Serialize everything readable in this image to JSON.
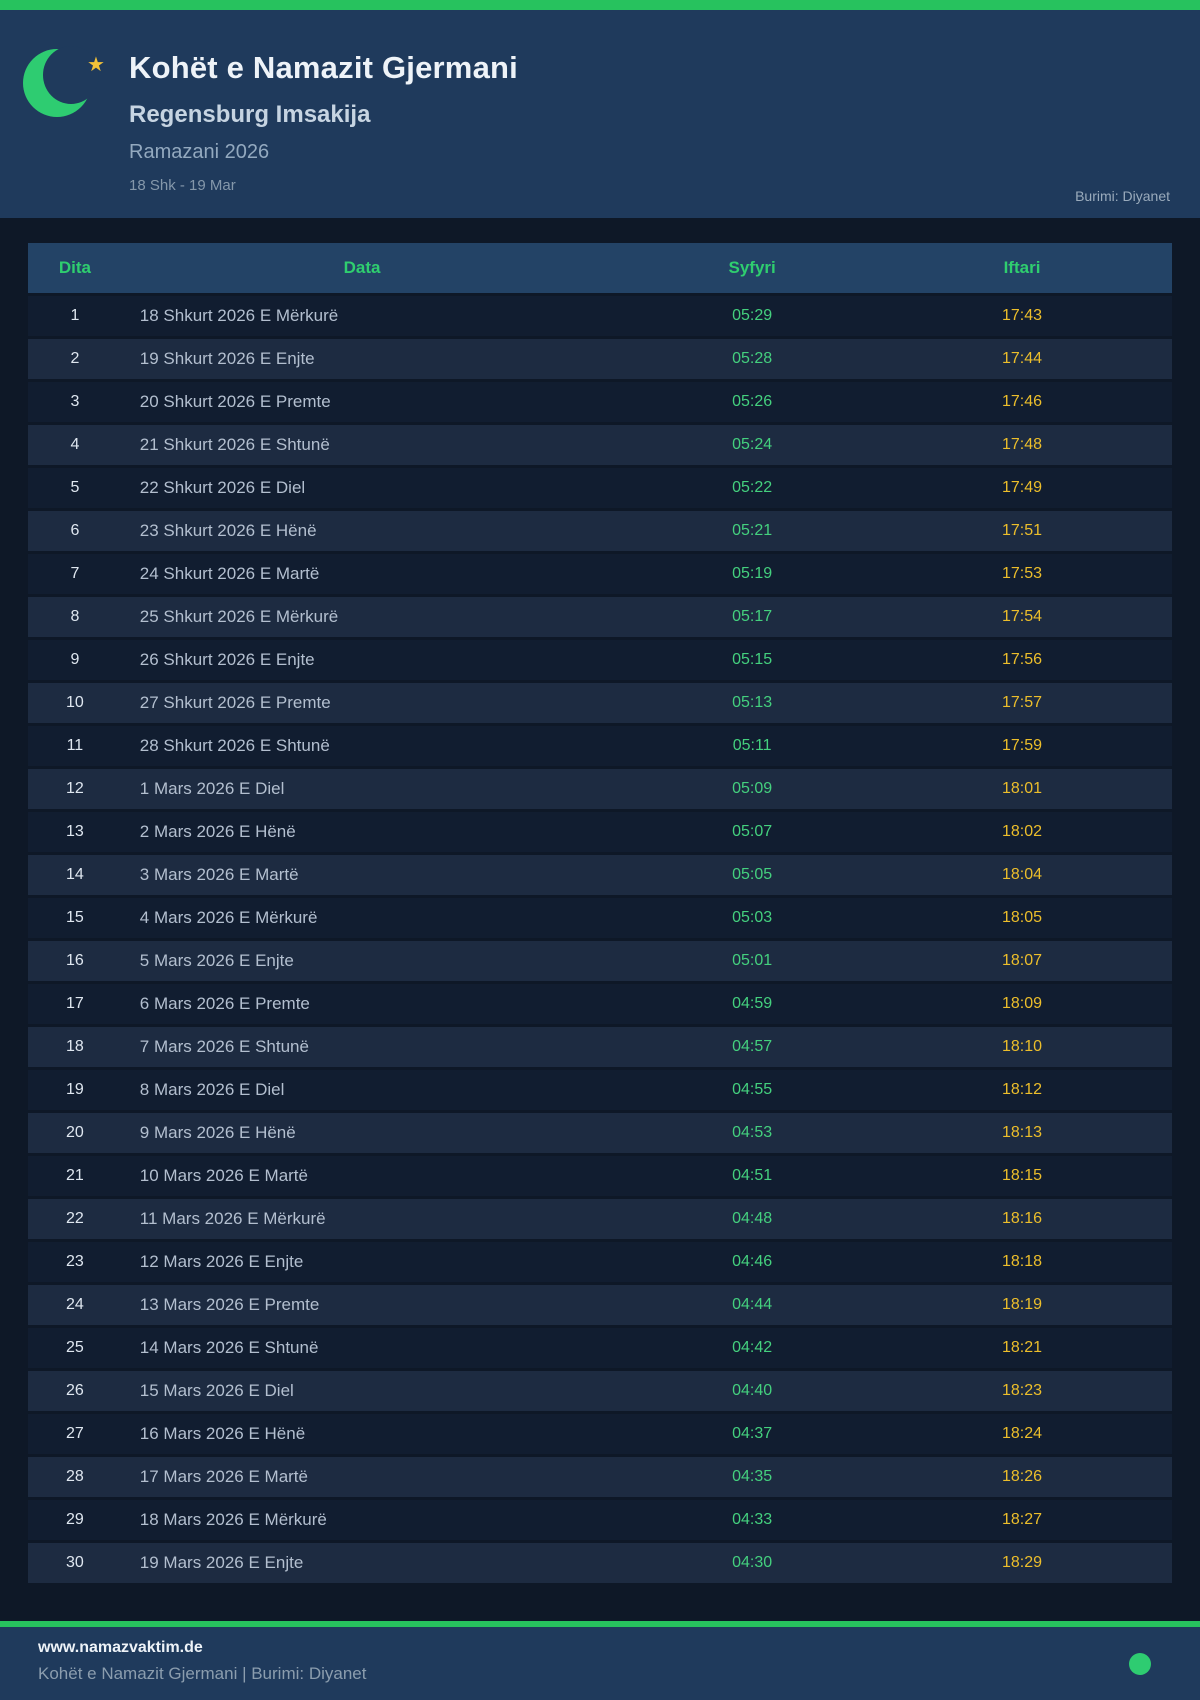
{
  "header": {
    "title": "Kohët e Namazit Gjermani",
    "subtitle": "Regensburg Imsakija",
    "season": "Ramazani 2026",
    "date_range": "18 Shk - 19 Mar",
    "source": "Burimi: Diyanet",
    "moon_icon": "crescent-moon",
    "star_icon": "star"
  },
  "colors": {
    "top_bar_green": "#27c25e",
    "accent_green": "#2ecc71",
    "syfyri_green": "#44d07e",
    "iftari_yellow": "#ecbe2b",
    "header_navy": "#1f3a5c",
    "page_bg": "#0e1827",
    "row_odd": "#111d30",
    "row_even": "#1d2b41",
    "table_header_bg": "#234366"
  },
  "table": {
    "columns": [
      "Dita",
      "Data",
      "Syfyri",
      "Iftari"
    ],
    "rows": [
      {
        "dita": "1",
        "data": "18 Shkurt 2026 E Mërkurë",
        "syfyri": "05:29",
        "iftari": "17:43"
      },
      {
        "dita": "2",
        "data": "19 Shkurt 2026 E Enjte",
        "syfyri": "05:28",
        "iftari": "17:44"
      },
      {
        "dita": "3",
        "data": "20 Shkurt 2026 E Premte",
        "syfyri": "05:26",
        "iftari": "17:46"
      },
      {
        "dita": "4",
        "data": "21 Shkurt 2026 E Shtunë",
        "syfyri": "05:24",
        "iftari": "17:48"
      },
      {
        "dita": "5",
        "data": "22 Shkurt 2026 E Diel",
        "syfyri": "05:22",
        "iftari": "17:49"
      },
      {
        "dita": "6",
        "data": "23 Shkurt 2026 E Hënë",
        "syfyri": "05:21",
        "iftari": "17:51"
      },
      {
        "dita": "7",
        "data": "24 Shkurt 2026 E Martë",
        "syfyri": "05:19",
        "iftari": "17:53"
      },
      {
        "dita": "8",
        "data": "25 Shkurt 2026 E Mërkurë",
        "syfyri": "05:17",
        "iftari": "17:54"
      },
      {
        "dita": "9",
        "data": "26 Shkurt 2026 E Enjte",
        "syfyri": "05:15",
        "iftari": "17:56"
      },
      {
        "dita": "10",
        "data": "27 Shkurt 2026 E Premte",
        "syfyri": "05:13",
        "iftari": "17:57"
      },
      {
        "dita": "11",
        "data": "28 Shkurt 2026 E Shtunë",
        "syfyri": "05:11",
        "iftari": "17:59"
      },
      {
        "dita": "12",
        "data": "1 Mars 2026 E Diel",
        "syfyri": "05:09",
        "iftari": "18:01"
      },
      {
        "dita": "13",
        "data": "2 Mars 2026 E Hënë",
        "syfyri": "05:07",
        "iftari": "18:02"
      },
      {
        "dita": "14",
        "data": "3 Mars 2026 E Martë",
        "syfyri": "05:05",
        "iftari": "18:04"
      },
      {
        "dita": "15",
        "data": "4 Mars 2026 E Mërkurë",
        "syfyri": "05:03",
        "iftari": "18:05"
      },
      {
        "dita": "16",
        "data": "5 Mars 2026 E Enjte",
        "syfyri": "05:01",
        "iftari": "18:07"
      },
      {
        "dita": "17",
        "data": "6 Mars 2026 E Premte",
        "syfyri": "04:59",
        "iftari": "18:09"
      },
      {
        "dita": "18",
        "data": "7 Mars 2026 E Shtunë",
        "syfyri": "04:57",
        "iftari": "18:10"
      },
      {
        "dita": "19",
        "data": "8 Mars 2026 E Diel",
        "syfyri": "04:55",
        "iftari": "18:12"
      },
      {
        "dita": "20",
        "data": "9 Mars 2026 E Hënë",
        "syfyri": "04:53",
        "iftari": "18:13"
      },
      {
        "dita": "21",
        "data": "10 Mars 2026 E Martë",
        "syfyri": "04:51",
        "iftari": "18:15"
      },
      {
        "dita": "22",
        "data": "11 Mars 2026 E Mërkurë",
        "syfyri": "04:48",
        "iftari": "18:16"
      },
      {
        "dita": "23",
        "data": "12 Mars 2026 E Enjte",
        "syfyri": "04:46",
        "iftari": "18:18"
      },
      {
        "dita": "24",
        "data": "13 Mars 2026 E Premte",
        "syfyri": "04:44",
        "iftari": "18:19"
      },
      {
        "dita": "25",
        "data": "14 Mars 2026 E Shtunë",
        "syfyri": "04:42",
        "iftari": "18:21"
      },
      {
        "dita": "26",
        "data": "15 Mars 2026 E Diel",
        "syfyri": "04:40",
        "iftari": "18:23"
      },
      {
        "dita": "27",
        "data": "16 Mars 2026 E Hënë",
        "syfyri": "04:37",
        "iftari": "18:24"
      },
      {
        "dita": "28",
        "data": "17 Mars 2026 E Martë",
        "syfyri": "04:35",
        "iftari": "18:26"
      },
      {
        "dita": "29",
        "data": "18 Mars 2026 E Mërkurë",
        "syfyri": "04:33",
        "iftari": "18:27"
      },
      {
        "dita": "30",
        "data": "19 Mars 2026 E Enjte",
        "syfyri": "04:30",
        "iftari": "18:29"
      }
    ]
  },
  "footer": {
    "website": "www.namazvaktim.de",
    "tagline": "Kohët e Namazit Gjermani | Burimi: Diyanet",
    "dot_icon": "green-dot"
  }
}
